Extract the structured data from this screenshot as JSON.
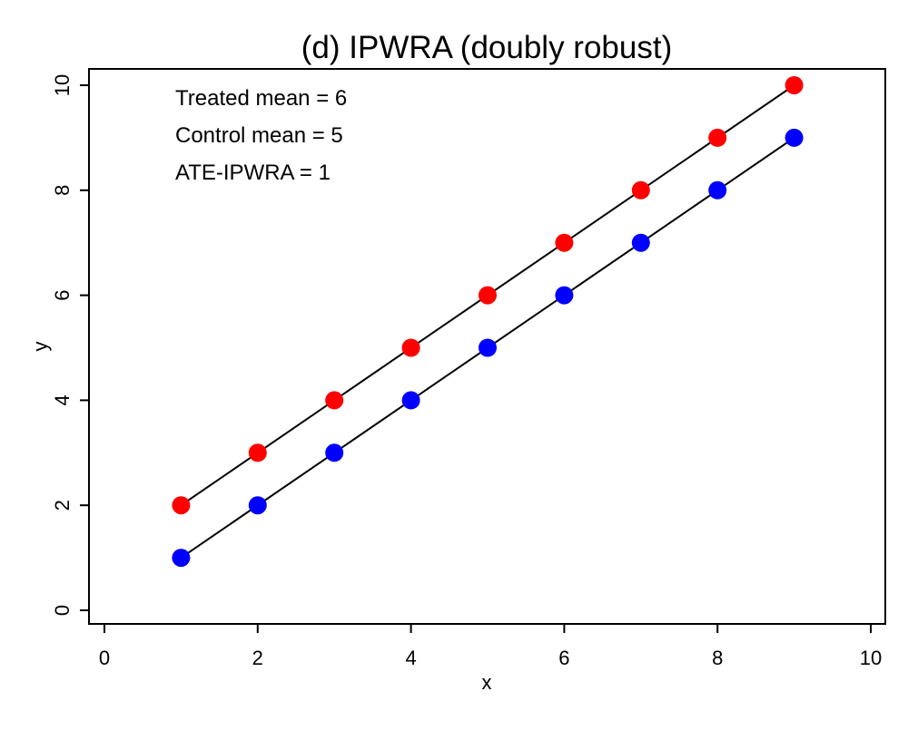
{
  "chart_data": {
    "type": "scatter",
    "title": "(d) IPWRA (doubly robust)",
    "xlabel": "x",
    "ylabel": "y",
    "xlim": [
      0,
      10
    ],
    "ylim": [
      0,
      10
    ],
    "xticks": [
      0,
      2,
      4,
      6,
      8,
      10
    ],
    "yticks": [
      0,
      2,
      4,
      6,
      8,
      10
    ],
    "grid": false,
    "legend": null,
    "series": [
      {
        "key": "treated",
        "color": "#ff0000",
        "x": [
          1,
          2,
          3,
          4,
          5,
          6,
          7,
          8,
          9
        ],
        "y": [
          2,
          3,
          4,
          5,
          6,
          7,
          8,
          9,
          10
        ]
      },
      {
        "key": "control",
        "color": "#0000ff",
        "x": [
          1,
          2,
          3,
          4,
          5,
          6,
          7,
          8,
          9
        ],
        "y": [
          1,
          2,
          3,
          4,
          5,
          6,
          7,
          8,
          9
        ]
      }
    ],
    "fit_lines": [
      {
        "key": "treated-fit",
        "color": "#000000",
        "x": [
          1,
          9
        ],
        "y": [
          2,
          10
        ]
      },
      {
        "key": "control-fit",
        "color": "#000000",
        "x": [
          1,
          9
        ],
        "y": [
          1,
          9
        ]
      }
    ],
    "annotations": [
      "Treated mean = 6",
      "Control mean = 5",
      "ATE-IPWRA = 1"
    ]
  }
}
